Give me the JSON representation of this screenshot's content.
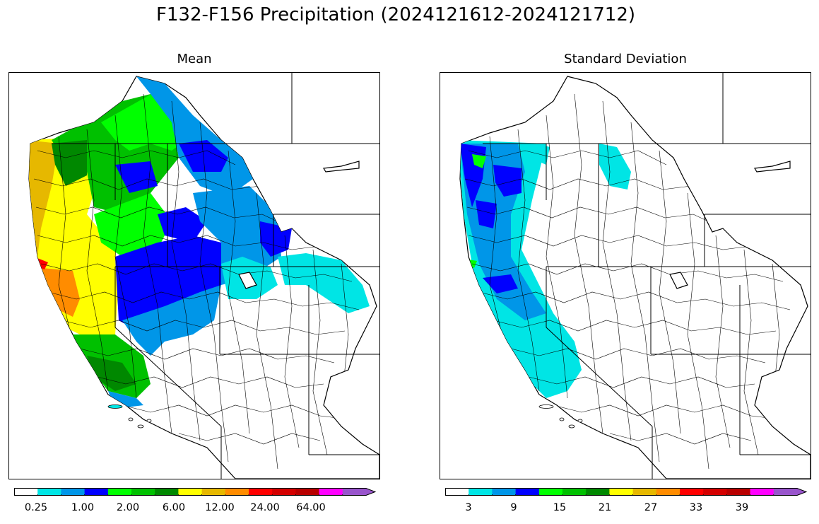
{
  "figure": {
    "title": "F132-F156 Precipitation (2024121612-2024121712)"
  },
  "panels": [
    {
      "title": "Mean",
      "colorbar": {
        "colors": [
          "#ffffff",
          "#00e5e5",
          "#0096e8",
          "#0000ff",
          "#00ff00",
          "#00c000",
          "#008800",
          "#ffff00",
          "#e6b800",
          "#ff8c00",
          "#ff0000",
          "#d40000",
          "#b80000",
          "#ff00ff",
          "#9955cc"
        ],
        "tick_labels": [
          "0.25",
          "1.00",
          "2.00",
          "6.00",
          "12.00",
          "24.00",
          "64.00"
        ],
        "extend": "max"
      }
    },
    {
      "title": "Standard Deviation",
      "colorbar": {
        "colors": [
          "#ffffff",
          "#00e5e5",
          "#0096e8",
          "#0000ff",
          "#00ff00",
          "#00c000",
          "#008800",
          "#ffff00",
          "#e6b800",
          "#ff8c00",
          "#ff0000",
          "#d40000",
          "#b80000",
          "#ff00ff",
          "#9955cc"
        ],
        "tick_labels": [
          "3",
          "9",
          "15",
          "21",
          "27",
          "33",
          "39"
        ],
        "extend": "max"
      }
    }
  ]
}
